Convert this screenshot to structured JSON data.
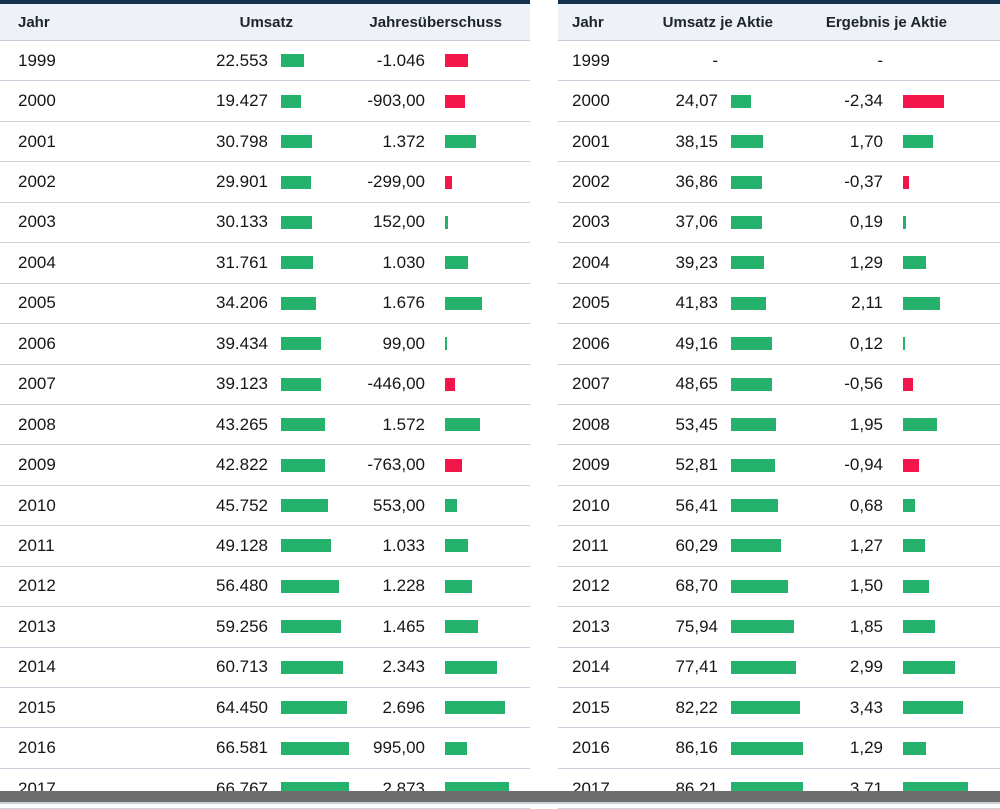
{
  "colors": {
    "positive": "#25b26d",
    "negative": "#f2164b",
    "top_border": "#14324e",
    "header_bg": "#eef1f5",
    "separator": "#c9d2dc",
    "bottom_bar": "#6e6e6e",
    "bottom_bar_edge": "#c9d0d7"
  },
  "chart_data": [
    {
      "type": "table",
      "columns": [
        "Jahr",
        "Umsatz",
        "Jahresüberschuss"
      ],
      "bar_style": "inline horizontal bars, green positive / red negative, width proportional to column max",
      "rows": [
        {
          "year": "1999",
          "cols": [
            {
              "text": "22.553",
              "value": 22553
            },
            {
              "text": "-1.046",
              "value": -1046
            }
          ]
        },
        {
          "year": "2000",
          "cols": [
            {
              "text": "19.427",
              "value": 19427
            },
            {
              "text": "-903,00",
              "value": -903
            }
          ]
        },
        {
          "year": "2001",
          "cols": [
            {
              "text": "30.798",
              "value": 30798
            },
            {
              "text": "1.372",
              "value": 1372
            }
          ]
        },
        {
          "year": "2002",
          "cols": [
            {
              "text": "29.901",
              "value": 29901
            },
            {
              "text": "-299,00",
              "value": -299
            }
          ]
        },
        {
          "year": "2003",
          "cols": [
            {
              "text": "30.133",
              "value": 30133
            },
            {
              "text": "152,00",
              "value": 152
            }
          ]
        },
        {
          "year": "2004",
          "cols": [
            {
              "text": "31.761",
              "value": 31761
            },
            {
              "text": "1.030",
              "value": 1030
            }
          ]
        },
        {
          "year": "2005",
          "cols": [
            {
              "text": "34.206",
              "value": 34206
            },
            {
              "text": "1.676",
              "value": 1676
            }
          ]
        },
        {
          "year": "2006",
          "cols": [
            {
              "text": "39.434",
              "value": 39434
            },
            {
              "text": "99,00",
              "value": 99
            }
          ]
        },
        {
          "year": "2007",
          "cols": [
            {
              "text": "39.123",
              "value": 39123
            },
            {
              "text": "-446,00",
              "value": -446
            }
          ]
        },
        {
          "year": "2008",
          "cols": [
            {
              "text": "43.265",
              "value": 43265
            },
            {
              "text": "1.572",
              "value": 1572
            }
          ]
        },
        {
          "year": "2009",
          "cols": [
            {
              "text": "42.822",
              "value": 42822
            },
            {
              "text": "-763,00",
              "value": -763
            }
          ]
        },
        {
          "year": "2010",
          "cols": [
            {
              "text": "45.752",
              "value": 45752
            },
            {
              "text": "553,00",
              "value": 553
            }
          ]
        },
        {
          "year": "2011",
          "cols": [
            {
              "text": "49.128",
              "value": 49128
            },
            {
              "text": "1.033",
              "value": 1033
            }
          ]
        },
        {
          "year": "2012",
          "cols": [
            {
              "text": "56.480",
              "value": 56480
            },
            {
              "text": "1.228",
              "value": 1228
            }
          ]
        },
        {
          "year": "2013",
          "cols": [
            {
              "text": "59.256",
              "value": 59256
            },
            {
              "text": "1.465",
              "value": 1465
            }
          ]
        },
        {
          "year": "2014",
          "cols": [
            {
              "text": "60.713",
              "value": 60713
            },
            {
              "text": "2.343",
              "value": 2343
            }
          ]
        },
        {
          "year": "2015",
          "cols": [
            {
              "text": "64.450",
              "value": 64450
            },
            {
              "text": "2.696",
              "value": 2696
            }
          ]
        },
        {
          "year": "2016",
          "cols": [
            {
              "text": "66.581",
              "value": 66581
            },
            {
              "text": "995,00",
              "value": 995
            }
          ]
        },
        {
          "year": "2017",
          "cols": [
            {
              "text": "66.767",
              "value": 66767
            },
            {
              "text": "2.873",
              "value": 2873
            }
          ]
        }
      ]
    },
    {
      "type": "table",
      "columns": [
        "Jahr",
        "Umsatz je Aktie",
        "Ergebnis je Aktie"
      ],
      "bar_style": "inline horizontal bars, green positive / red negative, width proportional to column max",
      "rows": [
        {
          "year": "1999",
          "cols": [
            {
              "text": "-",
              "value": null
            },
            {
              "text": "-",
              "value": null
            }
          ]
        },
        {
          "year": "2000",
          "cols": [
            {
              "text": "24,07",
              "value": 24.07
            },
            {
              "text": "-2,34",
              "value": -2.34
            }
          ]
        },
        {
          "year": "2001",
          "cols": [
            {
              "text": "38,15",
              "value": 38.15
            },
            {
              "text": "1,70",
              "value": 1.7
            }
          ]
        },
        {
          "year": "2002",
          "cols": [
            {
              "text": "36,86",
              "value": 36.86
            },
            {
              "text": "-0,37",
              "value": -0.37
            }
          ]
        },
        {
          "year": "2003",
          "cols": [
            {
              "text": "37,06",
              "value": 37.06
            },
            {
              "text": "0,19",
              "value": 0.19
            }
          ]
        },
        {
          "year": "2004",
          "cols": [
            {
              "text": "39,23",
              "value": 39.23
            },
            {
              "text": "1,29",
              "value": 1.29
            }
          ]
        },
        {
          "year": "2005",
          "cols": [
            {
              "text": "41,83",
              "value": 41.83
            },
            {
              "text": "2,11",
              "value": 2.11
            }
          ]
        },
        {
          "year": "2006",
          "cols": [
            {
              "text": "49,16",
              "value": 49.16
            },
            {
              "text": "0,12",
              "value": 0.12
            }
          ]
        },
        {
          "year": "2007",
          "cols": [
            {
              "text": "48,65",
              "value": 48.65
            },
            {
              "text": "-0,56",
              "value": -0.56
            }
          ]
        },
        {
          "year": "2008",
          "cols": [
            {
              "text": "53,45",
              "value": 53.45
            },
            {
              "text": "1,95",
              "value": 1.95
            }
          ]
        },
        {
          "year": "2009",
          "cols": [
            {
              "text": "52,81",
              "value": 52.81
            },
            {
              "text": "-0,94",
              "value": -0.94
            }
          ]
        },
        {
          "year": "2010",
          "cols": [
            {
              "text": "56,41",
              "value": 56.41
            },
            {
              "text": "0,68",
              "value": 0.68
            }
          ]
        },
        {
          "year": "2011",
          "cols": [
            {
              "text": "60,29",
              "value": 60.29
            },
            {
              "text": "1,27",
              "value": 1.27
            }
          ]
        },
        {
          "year": "2012",
          "cols": [
            {
              "text": "68,70",
              "value": 68.7
            },
            {
              "text": "1,50",
              "value": 1.5
            }
          ]
        },
        {
          "year": "2013",
          "cols": [
            {
              "text": "75,94",
              "value": 75.94
            },
            {
              "text": "1,85",
              "value": 1.85
            }
          ]
        },
        {
          "year": "2014",
          "cols": [
            {
              "text": "77,41",
              "value": 77.41
            },
            {
              "text": "2,99",
              "value": 2.99
            }
          ]
        },
        {
          "year": "2015",
          "cols": [
            {
              "text": "82,22",
              "value": 82.22
            },
            {
              "text": "3,43",
              "value": 3.43
            }
          ]
        },
        {
          "year": "2016",
          "cols": [
            {
              "text": "86,16",
              "value": 86.16
            },
            {
              "text": "1,29",
              "value": 1.29
            }
          ]
        },
        {
          "year": "2017",
          "cols": [
            {
              "text": "86,21",
              "value": 86.21
            },
            {
              "text": "3,71",
              "value": 3.71
            }
          ]
        }
      ]
    }
  ]
}
